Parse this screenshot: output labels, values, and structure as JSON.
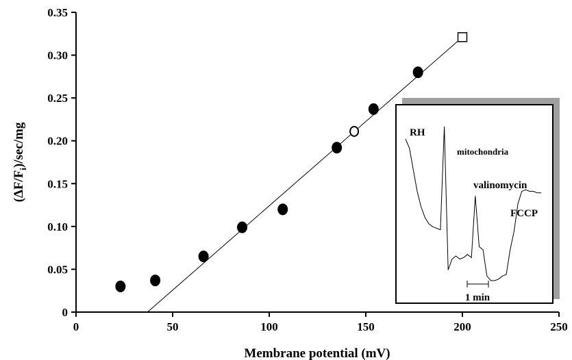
{
  "chart_data": {
    "type": "scatter",
    "xlabel": "Membrane potential (mV)",
    "ylabel": {
      "main": "(ΔF/F",
      "sub": "i",
      "rest": ")/sec/mg"
    },
    "xlim": [
      0,
      250
    ],
    "ylim": [
      0,
      0.35
    ],
    "x_ticks": [
      "0",
      "50",
      "100",
      "150",
      "200",
      "250"
    ],
    "y_ticks": [
      "0",
      "0.05",
      "0.10",
      "0.15",
      "0.20",
      "0.25",
      "0.30",
      "0.35"
    ],
    "grid": false,
    "legend": "none",
    "series": [
      {
        "marker": "filled-circle",
        "x": [
          23,
          41,
          66,
          86,
          107,
          135,
          154,
          177
        ],
        "y": [
          0.03,
          0.037,
          0.065,
          0.099,
          0.12,
          0.192,
          0.237,
          0.28
        ]
      },
      {
        "marker": "open-circle",
        "x": [
          144
        ],
        "y": [
          0.211
        ]
      },
      {
        "marker": "open-square",
        "x": [
          200
        ],
        "y": [
          0.321
        ]
      }
    ],
    "fit_line": {
      "x": [
        37,
        200
      ],
      "y": [
        0.0,
        0.321
      ]
    },
    "inset": {
      "type": "line",
      "annotations": [
        "RH",
        "mitochondria",
        "valinomycin",
        "FCCP"
      ],
      "scale_bar_label": "1 min",
      "x": [
        0,
        1,
        2,
        3,
        4,
        5,
        6,
        7,
        8,
        9,
        10,
        11,
        12,
        13,
        14,
        15,
        16,
        17,
        18,
        19,
        20,
        21,
        22,
        23,
        24,
        25,
        26,
        27,
        28,
        29,
        30,
        31,
        32,
        33,
        34,
        35
      ],
      "y": [
        92,
        86,
        72,
        58,
        48,
        41,
        37,
        35,
        34,
        33,
        100,
        7,
        14,
        16,
        14,
        15,
        17,
        15,
        55,
        22,
        20,
        3,
        0,
        0,
        1,
        3,
        4,
        20,
        32,
        50,
        58,
        59,
        58,
        58,
        57,
        57
      ]
    }
  }
}
